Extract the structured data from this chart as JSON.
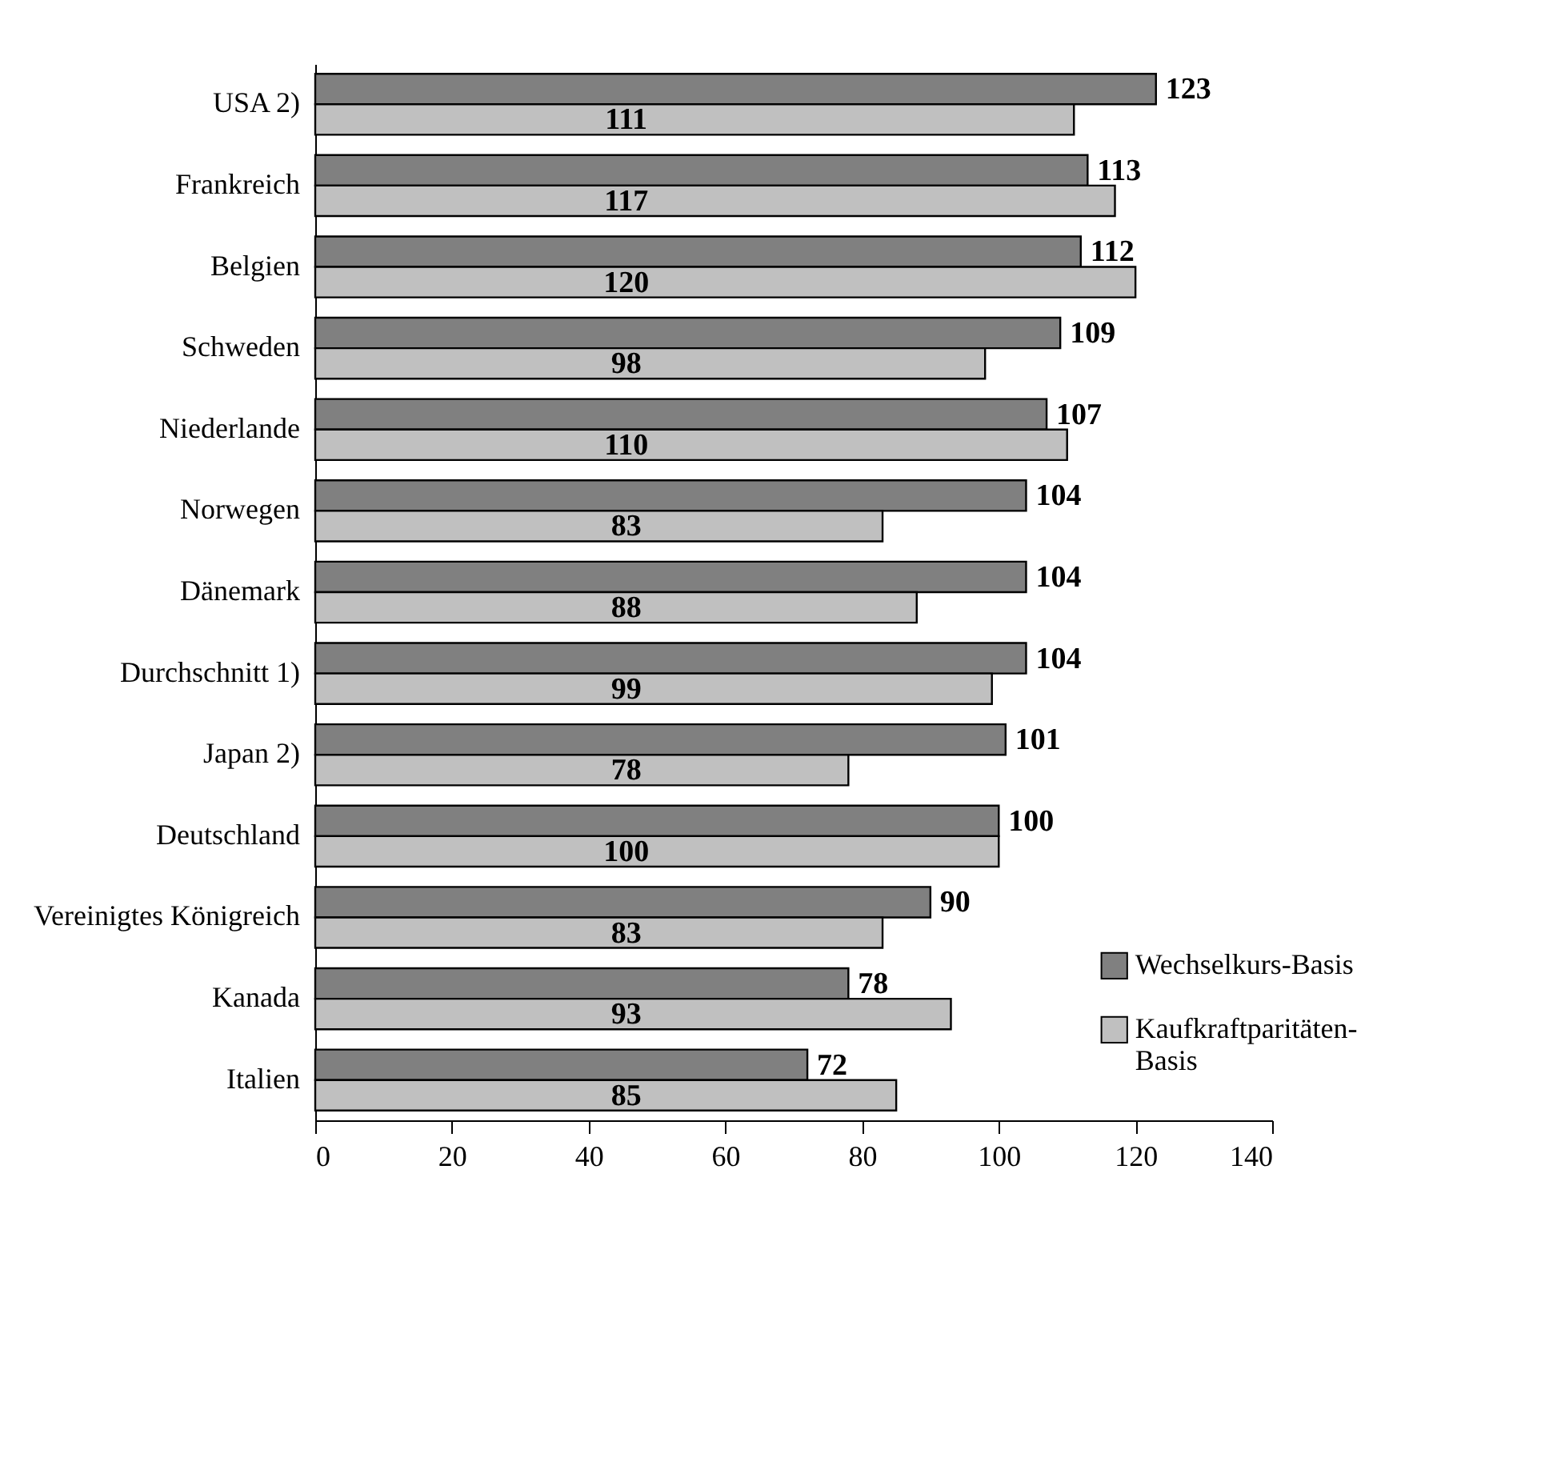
{
  "chart_data": {
    "type": "bar",
    "orientation": "horizontal",
    "categories": [
      "USA 2)",
      "Frankreich",
      "Belgien",
      "Schweden",
      "Niederlande",
      "Norwegen",
      "Dänemark",
      "Durchschnitt 1)",
      "Japan 2)",
      "Deutschland",
      "Vereinigtes Königreich",
      "Kanada",
      "Italien"
    ],
    "series": [
      {
        "name": "Wechselkurs-Basis",
        "color": "#808080",
        "values": [
          123,
          113,
          112,
          109,
          107,
          104,
          104,
          104,
          101,
          100,
          90,
          78,
          72
        ]
      },
      {
        "name": "Kaufkraftparitäten-Basis",
        "color": "#c0c0c0",
        "values": [
          111,
          117,
          120,
          98,
          110,
          83,
          88,
          99,
          78,
          100,
          83,
          93,
          85
        ]
      }
    ],
    "xlim": [
      0,
      140
    ],
    "xticks": [
      0,
      20,
      40,
      60,
      80,
      100,
      120,
      140
    ],
    "data_labels": true,
    "grid": false,
    "legend": "bottom right"
  }
}
